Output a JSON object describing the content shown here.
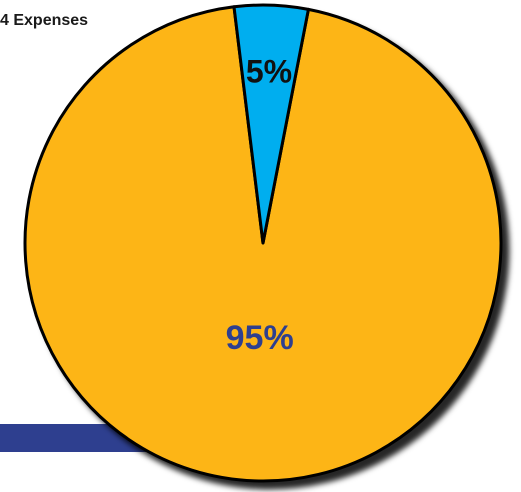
{
  "title": "4 Expenses",
  "colors": {
    "slice_major": "#FDB515",
    "slice_minor": "#00AEEF",
    "label_major": "#2E3F8F",
    "label_minor": "#111111",
    "outline": "#000000",
    "accent_bar": "#2E3F8F"
  },
  "chart_data": {
    "type": "pie",
    "title": "4 Expenses",
    "slices": [
      {
        "label": "95%",
        "value": 95
      },
      {
        "label": "5%",
        "value": 5
      }
    ],
    "legend": "none"
  }
}
